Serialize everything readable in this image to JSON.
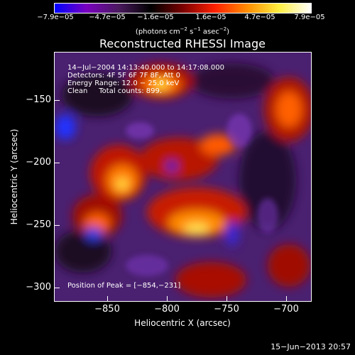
{
  "colorbar": {
    "colors": [
      "#0000ff",
      "#7a00c0",
      "#4a1a5e",
      "#000000",
      "#7a0000",
      "#ff2000",
      "#ff8c00",
      "#ffee40",
      "#ffffff"
    ],
    "ticks": [
      "−7.9e−05",
      "−4.7e−05",
      "−1.6e−05",
      "1.6e−05",
      "4.7e−05",
      "7.9e−05"
    ],
    "label_pre": "(photons cm",
    "label_sup1": "−2",
    "label_mid": " s",
    "label_sup2": "−1",
    "label_mid2": " asec",
    "label_sup3": "−2",
    "label_post": ")"
  },
  "plot": {
    "title": "Reconstructed RHESSI Image",
    "info": [
      "14−Jul−2004 14:13:40.000 to 14:17:08.000",
      "Detectors: 4F 5F 6F 7F 8F, Att 0",
      "Energy Range: 12.0 − 25.0 keV",
      "Clean     Total counts: 899."
    ],
    "peak_label": "Position of Peak = [−854,−231]",
    "x_label": "Heliocentric X (arcsec)",
    "y_label": "Heliocentric Y (arcsec)",
    "x_ticks": [
      "−850",
      "−800",
      "−750",
      "−700"
    ],
    "y_ticks": [
      "−150",
      "−200",
      "−250",
      "−300"
    ]
  },
  "footer": {
    "timestamp": "15−Jun−2013 20:57"
  }
}
